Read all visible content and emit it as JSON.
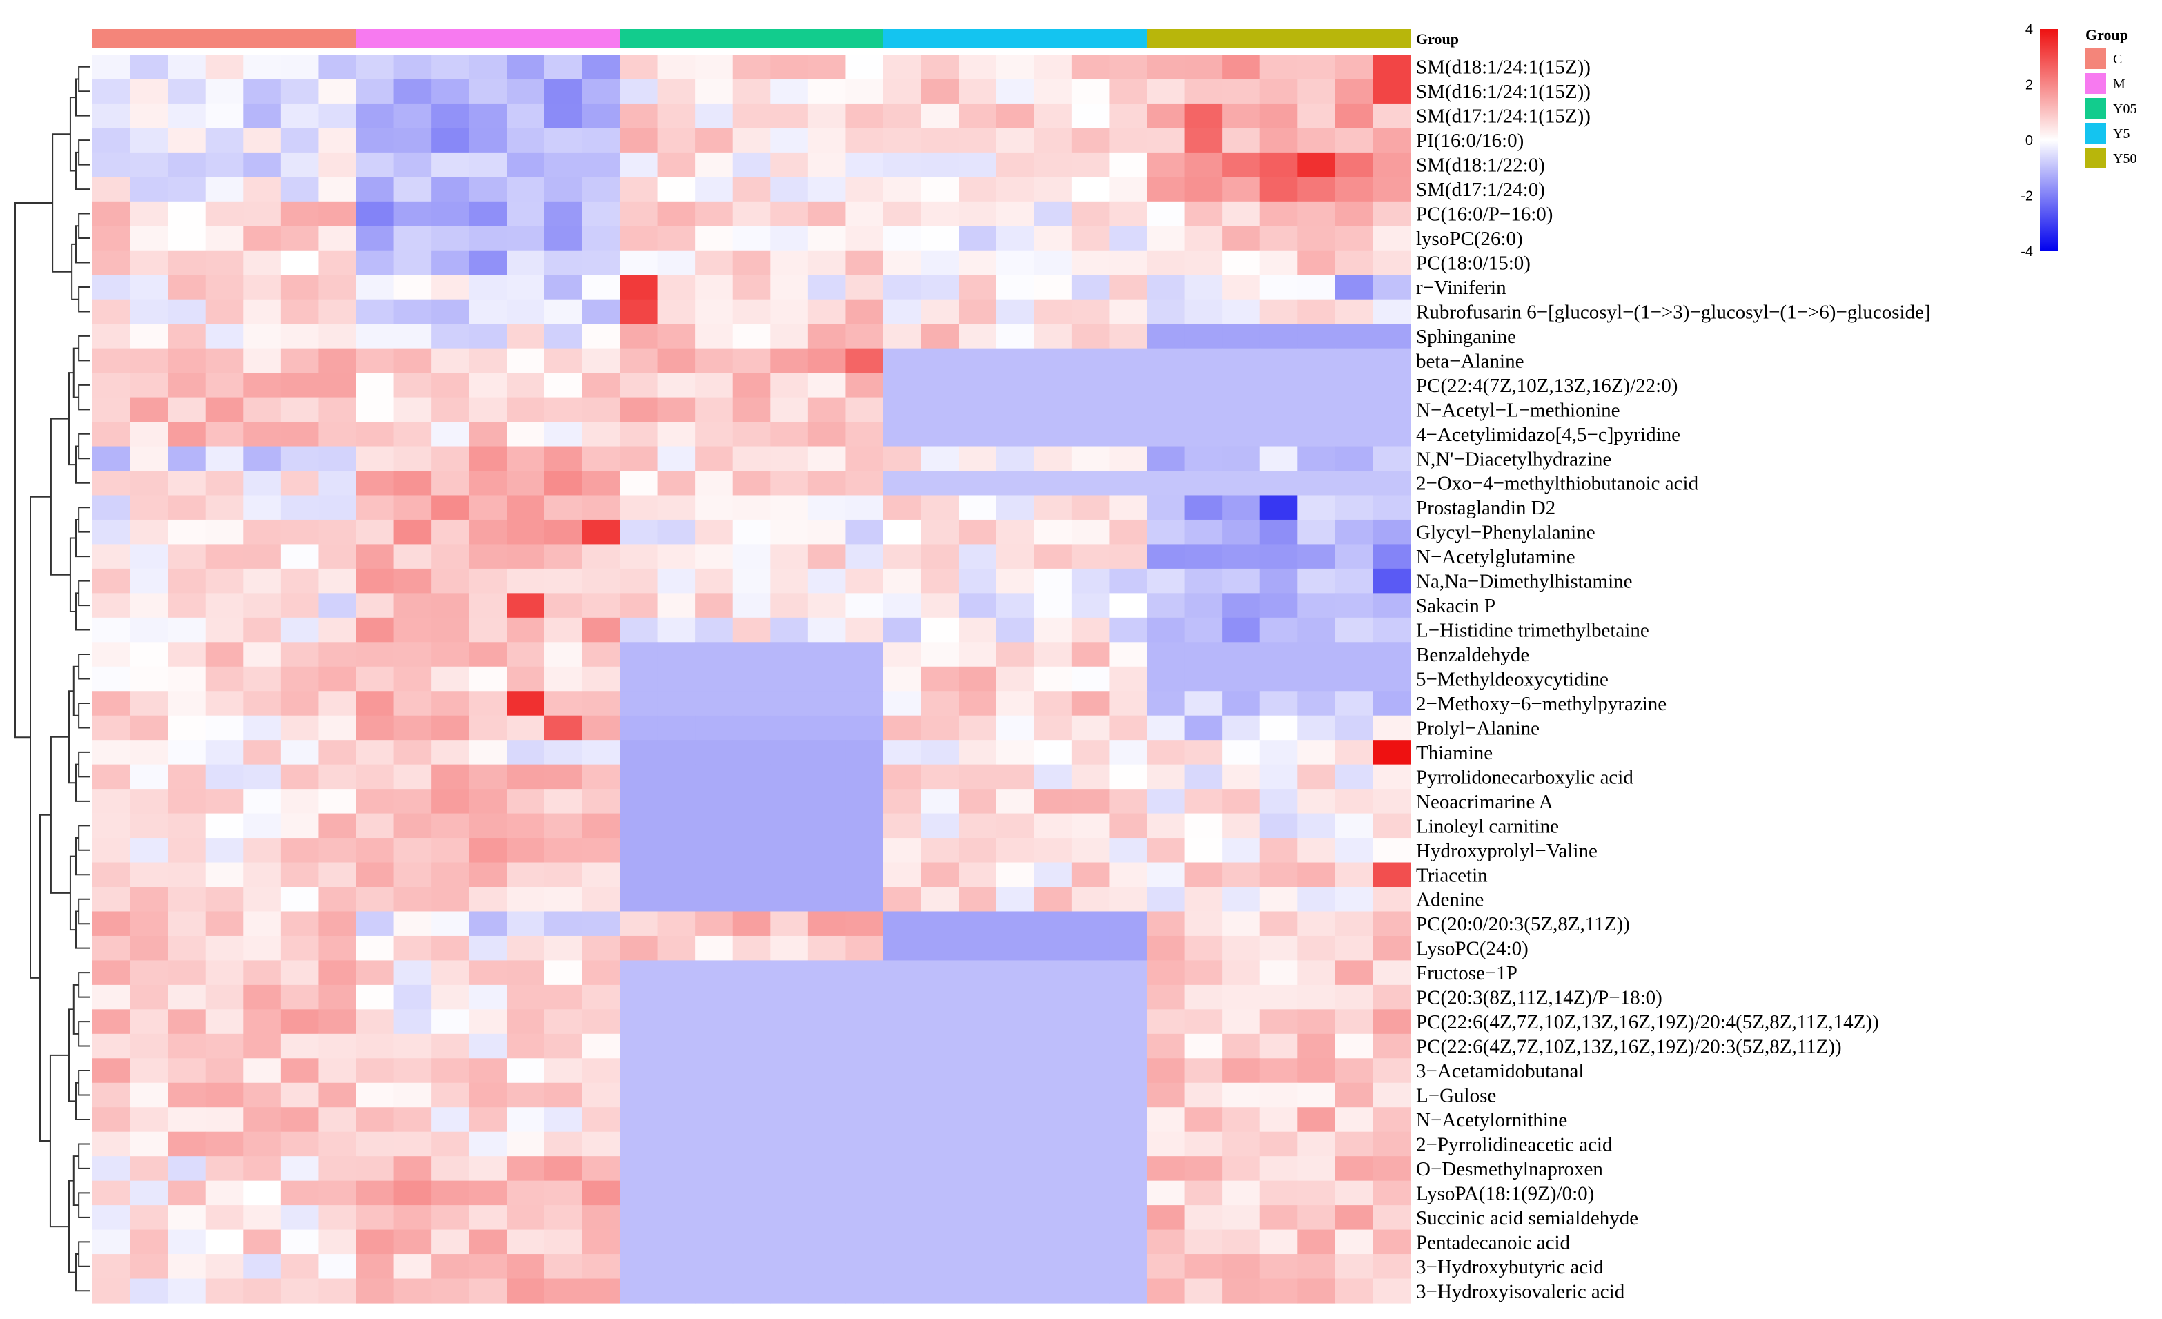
{
  "chart_data": {
    "type": "heatmap",
    "title": "",
    "xlabel": "",
    "ylabel": "",
    "color_scale": {
      "min": -4,
      "max": 4,
      "ticks": [
        4,
        2,
        0,
        -2,
        -4
      ],
      "low_color": "#0000ee",
      "mid_color": "#ffffff",
      "high_color": "#ee1111"
    },
    "group_annotation": {
      "label": "Group",
      "groups": [
        {
          "name": "C",
          "color": "#f4857a",
          "n_samples": 7
        },
        {
          "name": "M",
          "color": "#f77af0",
          "n_samples": 7
        },
        {
          "name": "Y05",
          "color": "#12cc8d",
          "n_samples": 7
        },
        {
          "name": "Y5",
          "color": "#14c4f0",
          "n_samples": 7
        },
        {
          "name": "Y50",
          "color": "#b8b60b",
          "n_samples": 7
        }
      ]
    },
    "legend": {
      "group_title": "Group",
      "position": "top-right"
    },
    "rows": [
      "SM(d18:1/24:1(15Z))",
      "SM(d16:1/24:1(15Z))",
      "SM(d17:1/24:1(15Z))",
      "PI(16:0/16:0)",
      "SM(d18:1/22:0)",
      "SM(d17:1/24:0)",
      "PC(16:0/P−16:0)",
      "lysoPC(26:0)",
      "PC(18:0/15:0)",
      "r−Viniferin",
      "Rubrofusarin 6−[glucosyl−(1−>3)−glucosyl−(1−>6)−glucoside]",
      "Sphinganine",
      "beta−Alanine",
      "PC(22:4(7Z,10Z,13Z,16Z)/22:0)",
      "N−Acetyl−L−methionine",
      "4−Acetylimidazo[4,5−c]pyridine",
      "N,N'−Diacetylhydrazine",
      "2−Oxo−4−methylthiobutanoic acid",
      "Prostaglandin D2",
      "Glycyl−Phenylalanine",
      "N−Acetylglutamine",
      "Na,Na−Dimethylhistamine",
      "Sakacin P",
      "L−Histidine trimethylbetaine",
      "Benzaldehyde",
      "5−Methyldeoxycytidine",
      "2−Methoxy−6−methylpyrazine",
      "Prolyl−Alanine",
      "Thiamine",
      "Pyrrolidonecarboxylic acid",
      "Neoacrimarine A",
      "Linoleyl carnitine",
      "Hydroxyprolyl−Valine",
      "Triacetin",
      "Adenine",
      "PC(20:0/20:3(5Z,8Z,11Z))",
      "LysoPC(24:0)",
      "Fructose−1P",
      "PC(20:3(8Z,11Z,14Z)/P−18:0)",
      "PC(22:6(4Z,7Z,10Z,13Z,16Z,19Z)/20:4(5Z,8Z,11Z,14Z))",
      "PC(22:6(4Z,7Z,10Z,13Z,16Z,19Z)/20:3(5Z,8Z,11Z))",
      "3−Acetamidobutanal",
      "L−Gulose",
      "N−Acetylornithine",
      "2−Pyrrolidineacetic acid",
      "O−Desmethylnaproxen",
      "LysoPA(18:1(9Z)/0:0)",
      "Succinic acid semialdehyde",
      "Pentadecanoic acid",
      "3−Hydroxybutyric acid",
      "3−Hydroxyisovaleric acid"
    ],
    "group_means": [
      [
        -0.3,
        -1.0,
        0.5,
        0.4,
        1.2
      ],
      [
        -0.4,
        -1.1,
        0.2,
        0.5,
        1.0
      ],
      [
        -0.3,
        -1.2,
        0.4,
        0.4,
        1.1
      ],
      [
        -0.2,
        -1.0,
        0.5,
        0.3,
        1.0
      ],
      [
        -0.3,
        -0.8,
        0.3,
        0.2,
        1.6
      ],
      [
        -0.2,
        -0.9,
        0.3,
        0.2,
        1.5
      ],
      [
        0.6,
        -1.1,
        0.4,
        0.1,
        0.6
      ],
      [
        0.5,
        -1.0,
        0.4,
        0.0,
        0.7
      ],
      [
        0.5,
        -0.9,
        0.3,
        -0.1,
        0.6
      ],
      [
        0.3,
        -0.4,
        0.2,
        0.1,
        -0.4
      ],
      [
        0.3,
        -0.3,
        0.7,
        0.3,
        0.2
      ],
      [
        0.4,
        0.0,
        0.6,
        0.5,
        -1.2
      ],
      [
        0.8,
        0.5,
        0.9,
        -0.8,
        -0.8
      ],
      [
        0.7,
        0.5,
        0.8,
        -0.8,
        -0.8
      ],
      [
        0.8,
        0.4,
        0.8,
        -0.8,
        -0.8
      ],
      [
        0.8,
        0.5,
        0.7,
        -0.8,
        -0.8
      ],
      [
        -0.3,
        0.9,
        0.4,
        0.1,
        -0.6
      ],
      [
        0.2,
        1.2,
        0.4,
        -0.7,
        -0.7
      ],
      [
        0.1,
        1.2,
        0.2,
        0.2,
        -1.0
      ],
      [
        0.1,
        1.1,
        -0.2,
        0.2,
        -1.1
      ],
      [
        0.3,
        1.0,
        0.3,
        0.2,
        -1.2
      ],
      [
        0.2,
        0.9,
        0.1,
        0.0,
        -1.0
      ],
      [
        0.1,
        1.1,
        0.4,
        0.0,
        -0.9
      ],
      [
        0.2,
        1.0,
        0.1,
        -0.1,
        -0.9
      ],
      [
        0.6,
        0.7,
        -0.9,
        0.7,
        -0.9
      ],
      [
        0.6,
        0.6,
        -0.9,
        0.6,
        -0.9
      ],
      [
        0.5,
        0.9,
        -0.9,
        0.5,
        -0.6
      ],
      [
        0.4,
        0.8,
        -1.0,
        0.3,
        -0.4
      ],
      [
        0.4,
        0.2,
        -1.1,
        0.2,
        0.4
      ],
      [
        0.3,
        0.7,
        -1.1,
        0.3,
        0.1
      ],
      [
        0.2,
        0.8,
        -1.1,
        0.5,
        0.2
      ],
      [
        0.5,
        0.9,
        -1.1,
        0.3,
        0.1
      ],
      [
        0.4,
        1.0,
        -1.1,
        0.3,
        0.2
      ],
      [
        0.3,
        0.8,
        -1.1,
        0.4,
        0.5
      ],
      [
        0.4,
        0.7,
        -1.1,
        0.4,
        0.3
      ],
      [
        0.7,
        -0.3,
        0.8,
        -1.2,
        0.4
      ],
      [
        0.7,
        0.3,
        0.6,
        -1.2,
        0.5
      ],
      [
        0.8,
        0.3,
        -0.8,
        -0.8,
        0.6
      ],
      [
        0.7,
        0.2,
        -0.8,
        -0.8,
        0.8
      ],
      [
        0.9,
        0.3,
        -0.8,
        -0.8,
        0.8
      ],
      [
        0.8,
        0.3,
        -0.8,
        -0.8,
        0.7
      ],
      [
        0.7,
        0.4,
        -0.8,
        -0.8,
        0.9
      ],
      [
        0.7,
        0.5,
        -0.8,
        -0.8,
        0.7
      ],
      [
        0.8,
        0.4,
        -0.8,
        -0.8,
        0.8
      ],
      [
        0.7,
        0.5,
        -0.8,
        -0.8,
        0.7
      ],
      [
        0.2,
        0.9,
        -0.8,
        -0.8,
        0.7
      ],
      [
        0.3,
        1.0,
        -0.8,
        -0.8,
        0.6
      ],
      [
        0.3,
        0.9,
        -0.8,
        -0.8,
        0.7
      ],
      [
        0.4,
        0.9,
        -0.8,
        -0.8,
        0.6
      ],
      [
        0.3,
        0.8,
        -0.8,
        -0.8,
        0.6
      ],
      [
        0.3,
        0.9,
        -0.8,
        -0.8,
        0.7
      ]
    ],
    "uniform_blocks": [
      [
        11,
        4
      ],
      [
        12,
        3
      ],
      [
        12,
        4
      ],
      [
        13,
        3
      ],
      [
        13,
        4
      ],
      [
        14,
        3
      ],
      [
        14,
        4
      ],
      [
        15,
        3
      ],
      [
        15,
        4
      ],
      [
        17,
        3
      ],
      [
        17,
        4
      ],
      [
        24,
        2
      ],
      [
        25,
        2
      ],
      [
        26,
        2
      ],
      [
        27,
        2
      ],
      [
        28,
        2
      ],
      [
        29,
        2
      ],
      [
        30,
        2
      ],
      [
        31,
        2
      ],
      [
        32,
        2
      ],
      [
        33,
        2
      ],
      [
        34,
        2
      ],
      [
        24,
        4
      ],
      [
        25,
        4
      ],
      [
        35,
        3
      ],
      [
        36,
        3
      ],
      [
        37,
        2
      ],
      [
        37,
        3
      ],
      [
        38,
        2
      ],
      [
        38,
        3
      ],
      [
        39,
        2
      ],
      [
        39,
        3
      ],
      [
        40,
        2
      ],
      [
        40,
        3
      ],
      [
        41,
        2
      ],
      [
        41,
        3
      ],
      [
        42,
        2
      ],
      [
        42,
        3
      ],
      [
        43,
        2
      ],
      [
        43,
        3
      ],
      [
        44,
        2
      ],
      [
        44,
        3
      ],
      [
        45,
        2
      ],
      [
        45,
        3
      ],
      [
        46,
        2
      ],
      [
        46,
        3
      ],
      [
        47,
        2
      ],
      [
        47,
        3
      ],
      [
        48,
        2
      ],
      [
        48,
        3
      ],
      [
        49,
        2
      ],
      [
        49,
        3
      ],
      [
        50,
        2
      ],
      [
        50,
        3
      ]
    ],
    "highlights": [
      [
        0,
        34,
        3.0
      ],
      [
        1,
        34,
        3.0
      ],
      [
        4,
        32,
        3.4
      ],
      [
        4,
        31,
        2.5
      ],
      [
        5,
        31,
        2.4
      ],
      [
        2,
        29,
        2.4
      ],
      [
        3,
        29,
        2.3
      ],
      [
        9,
        14,
        3.2
      ],
      [
        10,
        14,
        3.0
      ],
      [
        9,
        33,
        -1.5
      ],
      [
        12,
        20,
        2.4
      ],
      [
        18,
        31,
        -3.0
      ],
      [
        19,
        13,
        3.2
      ],
      [
        21,
        34,
        -2.4
      ],
      [
        22,
        11,
        3.0
      ],
      [
        26,
        11,
        3.4
      ],
      [
        27,
        12,
        2.6
      ],
      [
        28,
        34,
        4.0
      ],
      [
        33,
        34,
        2.8
      ]
    ]
  }
}
